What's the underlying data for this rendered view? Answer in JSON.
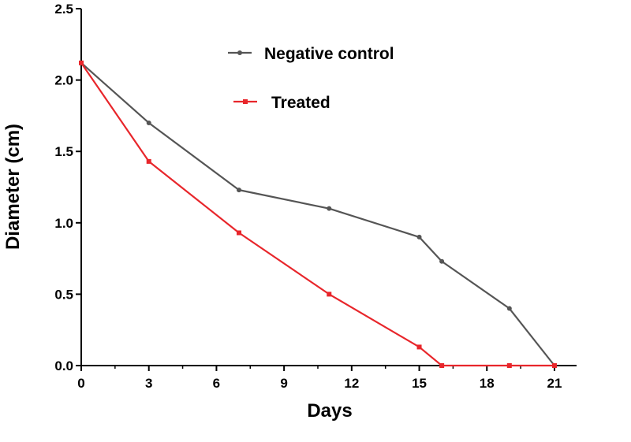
{
  "chart_data": {
    "type": "line",
    "title": "",
    "xlabel": "Days",
    "ylabel": "Diameter (cm)",
    "xlim": [
      0,
      22
    ],
    "ylim": [
      0,
      2.5
    ],
    "xticks": [
      0,
      3,
      6,
      9,
      12,
      15,
      18,
      21
    ],
    "yticks": [
      0.0,
      0.5,
      1.0,
      1.5,
      2.0,
      2.5
    ],
    "xtick_labels": [
      "0",
      "3",
      "6",
      "9",
      "12",
      "15",
      "18",
      "21"
    ],
    "ytick_labels": [
      "0.0",
      "0.5",
      "1.0",
      "1.5",
      "2.0",
      "2.5"
    ],
    "grid": false,
    "legend_position": "top-center",
    "series": [
      {
        "name": "Negative control",
        "color": "#555555",
        "marker": "circle",
        "x": [
          0,
          3,
          7,
          11,
          15,
          16,
          19,
          21
        ],
        "y": [
          2.12,
          1.7,
          1.23,
          1.1,
          0.9,
          0.73,
          0.4,
          0.0
        ]
      },
      {
        "name": "Treated",
        "color": "#e8262b",
        "marker": "square",
        "x": [
          0,
          3,
          7,
          11,
          15,
          16,
          19,
          21
        ],
        "y": [
          2.12,
          1.43,
          0.93,
          0.5,
          0.13,
          0.0,
          0.0,
          0.0
        ]
      }
    ]
  }
}
